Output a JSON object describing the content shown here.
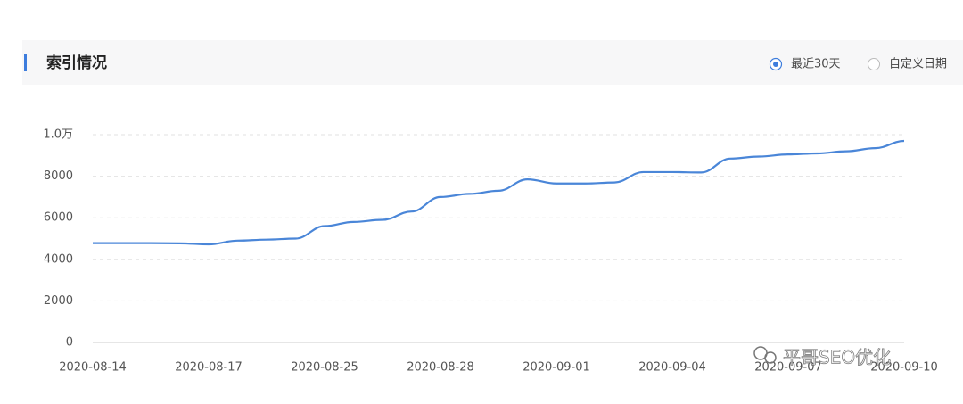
{
  "chart_data": {
    "type": "line",
    "title": "索引情况",
    "categories": [
      "2020-08-14",
      null,
      null,
      null,
      "2020-08-17",
      null,
      null,
      null,
      "2020-08-25",
      null,
      null,
      null,
      "2020-08-28",
      null,
      null,
      null,
      "2020-09-01",
      null,
      null,
      null,
      "2020-09-04",
      null,
      null,
      null,
      "2020-09-07",
      null,
      null,
      null,
      "2020-09-10"
    ],
    "series": [
      {
        "color": "#4a86d8",
        "values": [
          4780,
          4780,
          4780,
          4770,
          4720,
          4900,
          4950,
          5000,
          5600,
          5800,
          5900,
          6300,
          7000,
          7150,
          7300,
          7850,
          7650,
          7650,
          7700,
          8200,
          8200,
          8180,
          8850,
          8950,
          9050,
          9100,
          9200,
          9350,
          9700
        ]
      }
    ],
    "ylim": [
      0,
      10000
    ],
    "yticks": [
      0,
      2000,
      4000,
      6000,
      8000,
      {
        "value": 10000,
        "label": "1.0万"
      }
    ],
    "grid": true
  },
  "controls": {
    "options": [
      "最近30天",
      "自定义日期"
    ],
    "selected": 0
  },
  "watermark": "平哥SEO优化"
}
